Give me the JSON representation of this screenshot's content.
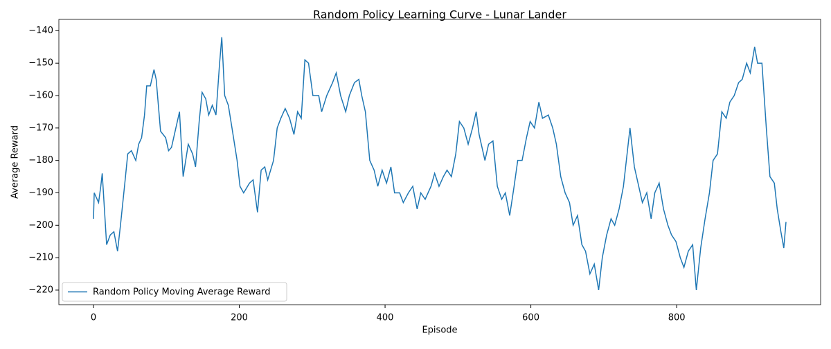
{
  "chart_data": {
    "type": "line",
    "title": "Random Policy Learning Curve - Lunar Lander",
    "x_label": "Episode",
    "y_label": "Average Reward",
    "legend": "lower left",
    "xlim": [
      -47.5,
      997.5
    ],
    "ylim": [
      -224.5,
      -136.5
    ],
    "xticks": [
      0,
      200,
      400,
      600,
      800
    ],
    "yticks": [
      {
        "value": -220,
        "label": "−220"
      },
      {
        "value": -210,
        "label": "−210"
      },
      {
        "value": -200,
        "label": "−200"
      },
      {
        "value": -190,
        "label": "−190"
      },
      {
        "value": -180,
        "label": "−180"
      },
      {
        "value": -170,
        "label": "−170"
      },
      {
        "value": -160,
        "label": "−160"
      },
      {
        "value": -150,
        "label": "−150"
      },
      {
        "value": -140,
        "label": "−140"
      }
    ],
    "x": [
      0,
      1,
      7,
      10,
      12,
      18,
      23,
      28,
      33,
      37,
      43,
      47,
      52,
      58,
      62,
      66,
      70,
      73,
      78,
      83,
      86,
      92,
      99,
      103,
      107,
      113,
      118,
      123,
      130,
      136,
      140,
      145,
      149,
      154,
      158,
      163,
      168,
      173,
      176,
      180,
      185,
      190,
      197,
      201,
      206,
      214,
      219,
      225,
      230,
      235,
      239,
      247,
      252,
      257,
      263,
      269,
      275,
      280,
      285,
      290,
      295,
      301,
      309,
      313,
      320,
      328,
      333,
      339,
      346,
      351,
      358,
      364,
      368,
      373,
      379,
      385,
      390,
      396,
      402,
      408,
      413,
      420,
      425,
      432,
      438,
      444,
      449,
      455,
      463,
      468,
      474,
      480,
      485,
      491,
      497,
      502,
      508,
      514,
      520,
      525,
      529,
      537,
      542,
      548,
      554,
      560,
      565,
      571,
      577,
      582,
      588,
      594,
      599,
      605,
      611,
      616,
      624,
      630,
      635,
      641,
      647,
      653,
      658,
      664,
      670,
      675,
      681,
      687,
      693,
      698,
      704,
      710,
      715,
      721,
      727,
      732,
      736,
      742,
      748,
      753,
      759,
      765,
      770,
      776,
      782,
      788,
      793,
      799,
      805,
      810,
      816,
      822,
      827,
      833,
      839,
      845,
      850,
      856,
      862,
      868,
      873,
      879,
      885,
      890,
      896,
      901,
      907,
      911,
      917,
      923,
      928,
      934,
      938,
      943,
      947,
      950
    ],
    "series": [
      {
        "name": "Random Policy Moving Average Reward",
        "color": "#1f77b4",
        "values": [
          -198,
          -190,
          -193,
          -188,
          -184,
          -206,
          -203,
          -202,
          -208,
          -200,
          -187,
          -178,
          -177,
          -180,
          -175,
          -173,
          -166,
          -157,
          -157,
          -152,
          -155,
          -171,
          -173,
          -177,
          -176,
          -170,
          -165,
          -185,
          -175,
          -178,
          -182,
          -168,
          -159,
          -161,
          -166,
          -163,
          -166,
          -150,
          -142,
          -160,
          -163,
          -170,
          -180,
          -188,
          -190,
          -187,
          -186,
          -196,
          -183,
          -182,
          -186,
          -180,
          -170,
          -167,
          -164,
          -167,
          -172,
          -165,
          -167,
          -149,
          -150,
          -160,
          -160,
          -165,
          -160,
          -156,
          -153,
          -160,
          -165,
          -160,
          -156,
          -155,
          -160,
          -165,
          -180,
          -183,
          -188,
          -183,
          -187,
          -182,
          -190,
          -190,
          -193,
          -190,
          -188,
          -195,
          -190,
          -192,
          -188,
          -184,
          -188,
          -185,
          -183,
          -185,
          -178,
          -168,
          -170,
          -175,
          -170,
          -165,
          -172,
          -180,
          -175,
          -174,
          -188,
          -192,
          -190,
          -197,
          -188,
          -180,
          -180,
          -173,
          -168,
          -170,
          -162,
          -167,
          -166,
          -170,
          -175,
          -185,
          -190,
          -193,
          -200,
          -197,
          -206,
          -208,
          -215,
          -212,
          -220,
          -210,
          -203,
          -198,
          -200,
          -195,
          -188,
          -178,
          -170,
          -182,
          -188,
          -193,
          -190,
          -198,
          -190,
          -187,
          -195,
          -200,
          -203,
          -205,
          -210,
          -213,
          -208,
          -206,
          -220,
          -207,
          -198,
          -190,
          -180,
          -178,
          -165,
          -167,
          -162,
          -160,
          -156,
          -155,
          -150,
          -153,
          -145,
          -150,
          -150,
          -170,
          -185,
          -187,
          -195,
          -202,
          -207,
          -199
        ]
      }
    ]
  }
}
